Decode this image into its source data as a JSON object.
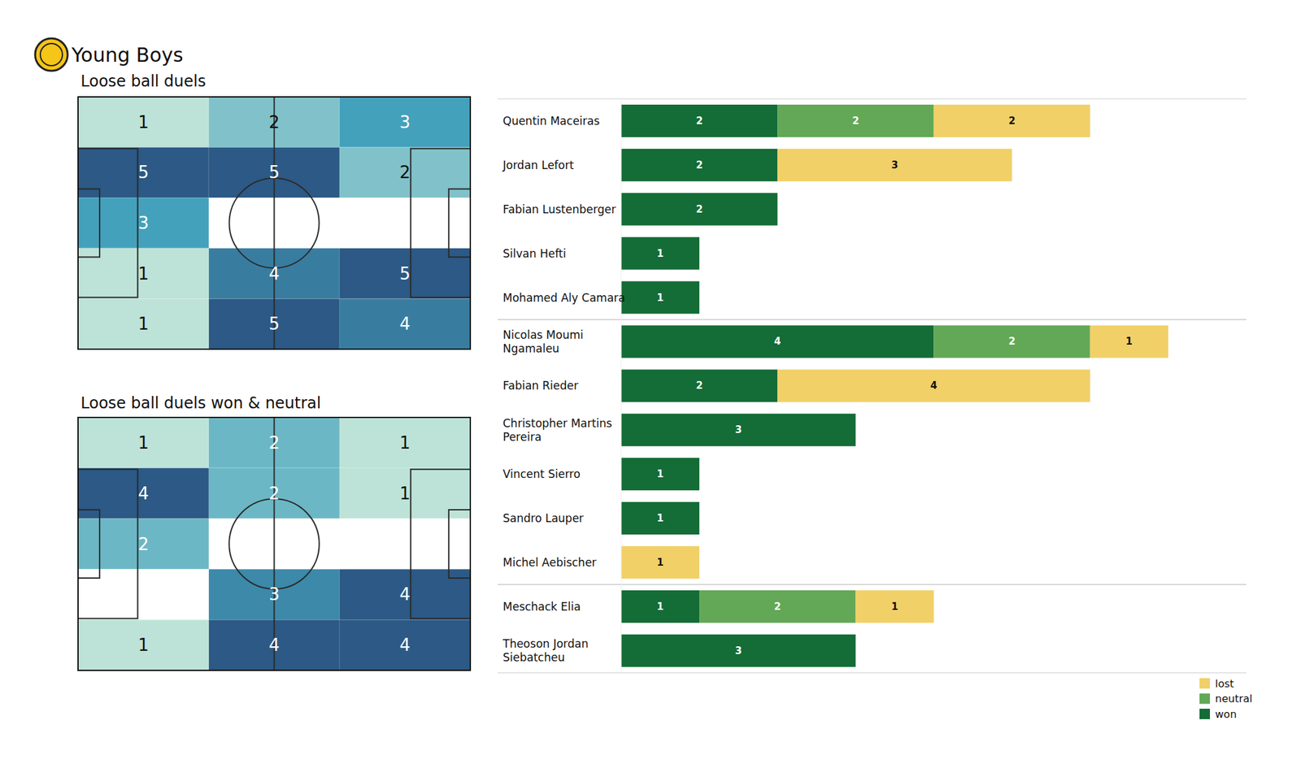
{
  "title": "Young Boys",
  "chart_data": [
    {
      "type": "heatmap",
      "title": "Loose ball duels",
      "cells": [
        [
          1,
          2,
          3
        ],
        [
          5,
          5,
          2
        ],
        [
          3,
          null,
          null
        ],
        [
          1,
          4,
          5
        ],
        [
          1,
          5,
          4
        ]
      ],
      "data_labels": true
    },
    {
      "type": "heatmap",
      "title": "Loose ball duels won & neutral",
      "cells": [
        [
          1,
          2,
          1
        ],
        [
          4,
          2,
          1
        ],
        [
          2,
          null,
          null
        ],
        [
          null,
          3,
          4
        ],
        [
          1,
          4,
          4
        ]
      ],
      "data_labels": true
    },
    {
      "type": "bar",
      "orientation": "horizontal",
      "stacked": true,
      "data_labels": true,
      "tick_labels": "y",
      "legend": "bottom-right",
      "categories": [
        "Quentin Maceiras",
        "Jordan Lefort",
        "Fabian Lustenberger",
        "Silvan Hefti",
        "Mohamed Aly Camara",
        "Nicolas Moumi Ngamaleu",
        "Fabian Rieder",
        "Christopher Martins Pereira",
        "Vincent Sierro",
        "Sandro Lauper",
        "Michel Aebischer",
        "Meschack Elia",
        "Theoson Jordan Siebatcheu"
      ],
      "group_sizes": [
        5,
        6,
        2
      ],
      "xlim": [
        0,
        8
      ],
      "series": [
        {
          "name": "won",
          "color": "#146c36",
          "values": [
            2,
            2,
            2,
            1,
            1,
            4,
            2,
            3,
            1,
            1,
            0,
            1,
            3
          ]
        },
        {
          "name": "neutral",
          "color": "#62a856",
          "values": [
            2,
            0,
            0,
            0,
            0,
            2,
            0,
            0,
            0,
            0,
            0,
            2,
            0
          ]
        },
        {
          "name": "lost",
          "color": "#f1d068",
          "values": [
            2,
            3,
            0,
            0,
            0,
            1,
            4,
            0,
            0,
            0,
            1,
            1,
            0
          ]
        }
      ]
    }
  ]
}
